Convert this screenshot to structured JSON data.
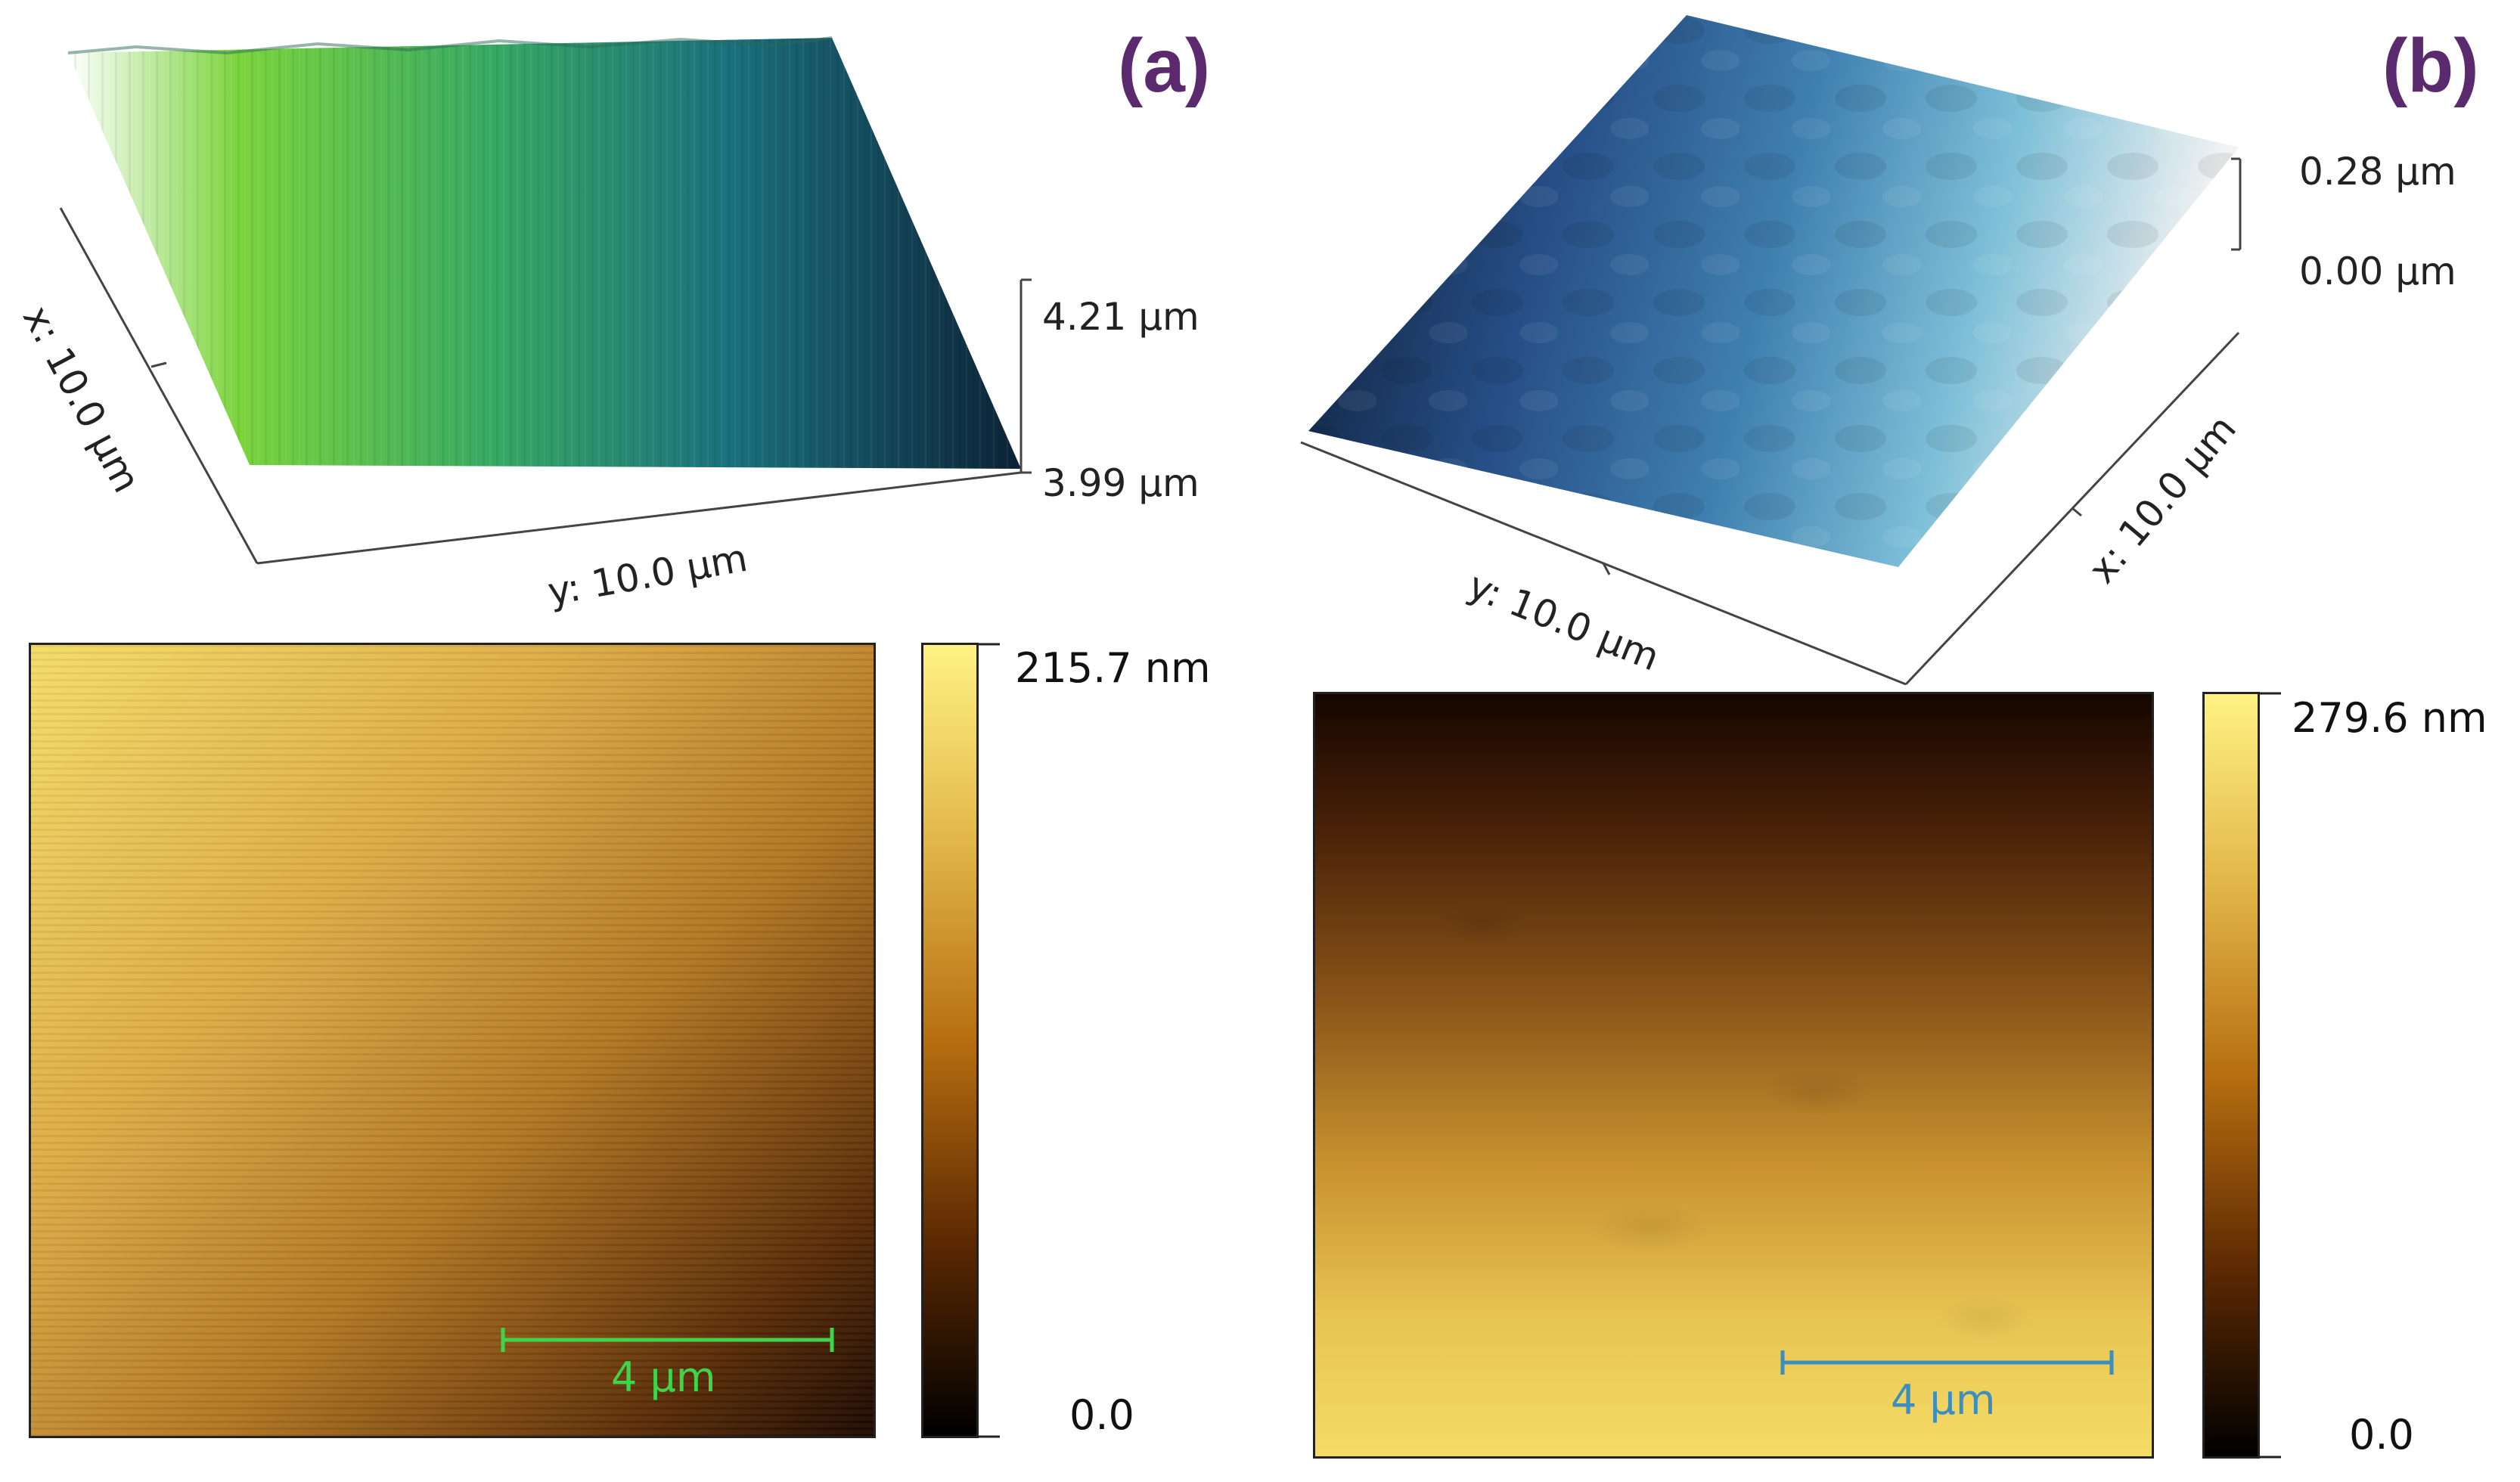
{
  "panels": {
    "a": {
      "label": "(a)",
      "z_max": "4.21 µm",
      "z_min": "3.99 µm",
      "x_axis": "x: 10.0 µm",
      "y_axis": "y: 10.0 µm",
      "cbar_max": "215.7 nm",
      "cbar_min": "0.0",
      "scalebar": "4 µm",
      "scalebar_color": "#3fd44a",
      "surface_colors": [
        "#ffffff",
        "#6fd23a",
        "#1f8a7a",
        "#0f2a3a"
      ]
    },
    "b": {
      "label": "(b)",
      "z_max": "0.28 µm",
      "z_min": "0.00 µm",
      "x_axis": "x: 10.0 µm",
      "y_axis": "y: 10.0 µm",
      "cbar_max": "279.6 nm",
      "cbar_min": "0.0",
      "scalebar": "4 µm",
      "scalebar_color": "#3a8fc0",
      "surface_colors": [
        "#0a1a30",
        "#2f5a90",
        "#6ab4d0",
        "#f4f4f4"
      ]
    }
  },
  "colormap": [
    "#000000",
    "#5a2a00",
    "#b06a10",
    "#e0b040",
    "#fff080"
  ]
}
